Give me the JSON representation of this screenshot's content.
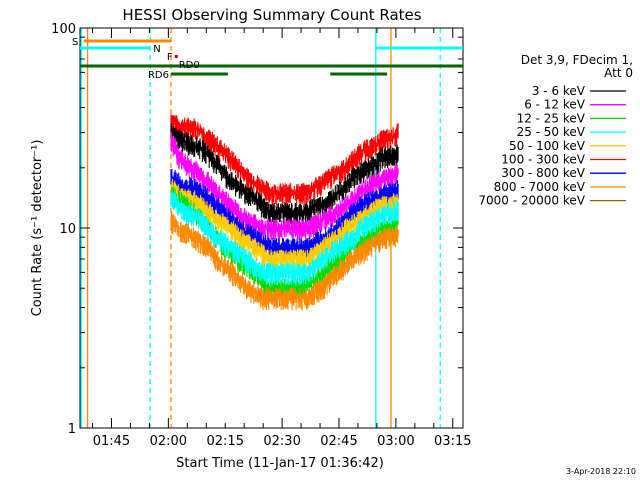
{
  "chart_data": {
    "type": "line",
    "title": "HESSI Observing Summary Count Rates",
    "xlabel": "Start Time (11-Jan-17 01:36:42)",
    "ylabel": "Count Rate (s⁻¹ detector⁻¹)",
    "yscale": "log",
    "xlim_minutes": [
      0,
      101
    ],
    "ylim": [
      1,
      100
    ],
    "x_ticks": [
      {
        "minutes": 8.3,
        "label": "01:45"
      },
      {
        "minutes": 23.3,
        "label": "02:00"
      },
      {
        "minutes": 38.3,
        "label": "02:15"
      },
      {
        "minutes": 53.3,
        "label": "02:30"
      },
      {
        "minutes": 68.3,
        "label": "02:45"
      },
      {
        "minutes": 83.3,
        "label": "03:00"
      },
      {
        "minutes": 98.3,
        "label": "03:15"
      }
    ],
    "y_ticks": [
      {
        "value": 1,
        "label": "1"
      },
      {
        "value": 10,
        "label": "10"
      },
      {
        "value": 100,
        "label": "100"
      }
    ],
    "legend": {
      "placement": "right",
      "header": [
        "Det 3,9, FDecim 1,",
        "Att 0"
      ],
      "entries": [
        {
          "label": "3 - 6 keV",
          "color": "#000000"
        },
        {
          "label": "6 - 12 keV",
          "color": "#ff00ff"
        },
        {
          "label": "12 - 25 keV",
          "color": "#00dd00"
        },
        {
          "label": "25 - 50 keV",
          "color": "#00ffff"
        },
        {
          "label": "50 - 100 keV",
          "color": "#ffcc00"
        },
        {
          "label": "100 - 300 keV",
          "color": "#ff0000"
        },
        {
          "label": "300 - 800 keV",
          "color": "#0000ff"
        },
        {
          "label": "800 - 7000 keV",
          "color": "#ff8800"
        },
        {
          "label": "7000 - 20000 keV",
          "color": "#a06010"
        }
      ]
    },
    "series": [
      {
        "name": "100 - 300 keV",
        "color": "#ff0000",
        "x": [
          24,
          26,
          28,
          30,
          32,
          34,
          36,
          38,
          40,
          42,
          44,
          46,
          48,
          50,
          52,
          54,
          56,
          58,
          60,
          62,
          64,
          66,
          68,
          70,
          72,
          74,
          76,
          78,
          80,
          82,
          84
        ],
        "y": [
          35,
          32,
          32,
          32,
          30,
          28,
          26,
          24,
          22,
          20,
          18,
          17,
          16,
          15,
          15,
          15,
          15,
          15,
          15,
          16,
          17,
          18,
          19,
          20,
          22,
          24,
          25,
          26,
          28,
          28,
          30
        ]
      },
      {
        "name": "3 - 6 keV",
        "color": "#000000",
        "x": [
          24,
          26,
          28,
          30,
          32,
          34,
          36,
          38,
          40,
          42,
          44,
          46,
          48,
          50,
          52,
          54,
          56,
          58,
          60,
          62,
          64,
          66,
          68,
          70,
          72,
          74,
          76,
          78,
          80,
          82,
          84
        ],
        "y": [
          30,
          28,
          27,
          26,
          25,
          23,
          21,
          19,
          17,
          16,
          15,
          14,
          13,
          12,
          12,
          12,
          12,
          12,
          12,
          13,
          13,
          14,
          15,
          16,
          18,
          19,
          20,
          21,
          23,
          23,
          24
        ]
      },
      {
        "name": "6 - 12 keV",
        "color": "#ff00ff",
        "x": [
          24,
          26,
          28,
          30,
          32,
          34,
          36,
          38,
          40,
          42,
          44,
          46,
          48,
          50,
          52,
          54,
          56,
          58,
          60,
          62,
          64,
          66,
          68,
          70,
          72,
          74,
          76,
          78,
          80,
          82,
          84
        ],
        "y": [
          28,
          23,
          21,
          20,
          18,
          17,
          15,
          14,
          13,
          12,
          11,
          10.5,
          10,
          10,
          10,
          10,
          10,
          10,
          10,
          10.5,
          11,
          11.5,
          12,
          13,
          14,
          15,
          16,
          17,
          18,
          18,
          19
        ]
      },
      {
        "name": "300 - 800 keV",
        "color": "#0000ff",
        "x": [
          24,
          26,
          28,
          30,
          32,
          34,
          36,
          38,
          40,
          42,
          44,
          46,
          48,
          50,
          52,
          54,
          56,
          58,
          60,
          62,
          64,
          66,
          68,
          70,
          72,
          74,
          76,
          78,
          80,
          82,
          84
        ],
        "y": [
          18,
          17,
          16,
          16,
          15,
          14,
          13,
          12,
          11,
          10,
          9.5,
          9,
          8.5,
          8,
          8,
          8,
          8,
          8,
          8,
          8.5,
          9,
          9.5,
          10,
          11,
          12,
          13,
          13.5,
          14,
          15,
          15,
          16
        ]
      },
      {
        "name": "50 - 100 keV",
        "color": "#ffcc00",
        "x": [
          24,
          26,
          28,
          30,
          32,
          34,
          36,
          38,
          40,
          42,
          44,
          46,
          48,
          50,
          52,
          54,
          56,
          58,
          60,
          62,
          64,
          66,
          68,
          70,
          72,
          74,
          76,
          78,
          80,
          82,
          84
        ],
        "y": [
          16,
          15,
          14,
          14,
          13,
          12,
          11,
          10.5,
          10,
          9,
          8.5,
          8,
          7.5,
          7,
          7,
          7,
          7,
          7,
          7,
          7.5,
          8,
          8.5,
          9,
          10,
          10.5,
          11,
          12,
          12.5,
          13,
          13,
          14
        ]
      },
      {
        "name": "12 - 25 keV",
        "color": "#00dd00",
        "x": [
          24,
          26,
          28,
          30,
          32,
          34,
          36,
          38,
          40,
          42,
          44,
          46,
          48,
          50,
          52,
          54,
          56,
          58,
          60,
          62,
          64,
          66,
          68,
          70,
          72,
          74,
          76,
          78,
          80,
          82,
          84
        ],
        "y": [
          15,
          14,
          13,
          12,
          11,
          10,
          9,
          8,
          7.5,
          7,
          6.5,
          6,
          5.5,
          5,
          5,
          5,
          5,
          5,
          5.5,
          5.5,
          6,
          6.5,
          7,
          7.5,
          8,
          8.5,
          9,
          9.5,
          10,
          10,
          11
        ]
      },
      {
        "name": "25 - 50 keV",
        "color": "#00ffff",
        "x": [
          24,
          26,
          28,
          30,
          32,
          34,
          36,
          38,
          40,
          42,
          44,
          46,
          48,
          50,
          52,
          54,
          56,
          58,
          60,
          62,
          64,
          66,
          68,
          70,
          72,
          74,
          76,
          78,
          80,
          82,
          84
        ],
        "y": [
          14,
          13,
          12,
          11.5,
          11,
          10,
          9,
          8.5,
          8,
          7.5,
          7,
          6.5,
          6,
          6,
          6,
          6,
          6,
          6,
          6,
          6.5,
          7,
          7.5,
          8,
          8.5,
          9,
          10,
          10.5,
          11,
          12,
          12,
          12.5
        ]
      },
      {
        "name": "800 - 7000 keV",
        "color": "#ff8800",
        "x": [
          24,
          26,
          28,
          30,
          32,
          34,
          36,
          38,
          40,
          42,
          44,
          46,
          48,
          50,
          52,
          54,
          56,
          58,
          60,
          62,
          64,
          66,
          68,
          70,
          72,
          74,
          76,
          78,
          80,
          82,
          84
        ],
        "y": [
          11,
          10,
          9.5,
          9,
          8.5,
          8,
          7,
          6.5,
          6,
          5.5,
          5,
          4.8,
          4.5,
          4.5,
          4.5,
          4.5,
          4.5,
          4.5,
          4.5,
          4.8,
          5,
          5.5,
          6,
          6.5,
          7,
          7.5,
          8,
          8.5,
          9,
          9,
          9.5
        ]
      }
    ],
    "status_bars": {
      "S_bar": {
        "label": "S",
        "color": "#ff8800",
        "segments": [
          [
            1,
            24
          ]
        ],
        "level": 0
      },
      "N_bar": {
        "label": "N",
        "color": "#00ffff",
        "segments": [
          [
            0,
            18.5
          ],
          [
            78,
            101
          ]
        ],
        "level": 1
      },
      "F_flag": {
        "label": "F",
        "color": "#cc0000",
        "segments": [
          [
            25,
            25.5
          ]
        ],
        "level": 2
      },
      "RD0": {
        "label": "RD0",
        "color": "#006600",
        "segments": [
          [
            0,
            101
          ]
        ],
        "level": 3
      },
      "RD6": {
        "label": "RD6",
        "color": "#006600",
        "segments": [
          [
            24,
            39
          ],
          [
            66,
            81
          ]
        ],
        "level": 4
      }
    },
    "vlines": [
      {
        "minutes": 0.3,
        "color": "#00ffff",
        "style": "solid"
      },
      {
        "minutes": 2.0,
        "color": "#ff8800",
        "style": "solid"
      },
      {
        "minutes": 18.5,
        "color": "#00ffff",
        "style": "dashed"
      },
      {
        "minutes": 24.0,
        "color": "#ff8800",
        "style": "dashed"
      },
      {
        "minutes": 78.0,
        "color": "#00ffff",
        "style": "solid"
      },
      {
        "minutes": 82.0,
        "color": "#ff8800",
        "style": "solid"
      },
      {
        "minutes": 95.0,
        "color": "#00ffff",
        "style": "dashed"
      }
    ],
    "footer_timestamp": "3-Apr-2018 22:10"
  }
}
